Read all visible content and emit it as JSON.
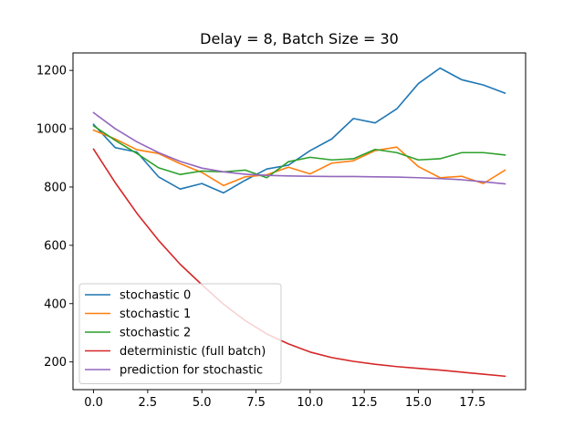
{
  "chart_data": {
    "type": "line",
    "title": "Delay = 8, Batch Size = 30",
    "xlabel": "",
    "ylabel": "",
    "xlim": [
      -0.95,
      19.95
    ],
    "ylim": [
      105,
      1260
    ],
    "x": [
      0,
      1,
      2,
      3,
      4,
      5,
      6,
      7,
      8,
      9,
      10,
      11,
      12,
      13,
      14,
      15,
      16,
      17,
      18,
      19
    ],
    "xticks": [
      0.0,
      2.5,
      5.0,
      7.5,
      10.0,
      12.5,
      15.0,
      17.5
    ],
    "xtick_labels": [
      "0.0",
      "2.5",
      "5.0",
      "7.5",
      "10.0",
      "12.5",
      "15.0",
      "17.5"
    ],
    "yticks": [
      200,
      400,
      600,
      800,
      1000,
      1200
    ],
    "ytick_labels": [
      "200",
      "400",
      "600",
      "800",
      "1000",
      "1200"
    ],
    "grid": false,
    "legend_position": "lower-left",
    "series": [
      {
        "name": "stochastic 0",
        "color": "#1f77b4",
        "values": [
          1015,
          935,
          920,
          835,
          793,
          812,
          780,
          823,
          862,
          875,
          925,
          965,
          1035,
          1020,
          1068,
          1155,
          1208,
          1168,
          1150,
          1122
        ]
      },
      {
        "name": "stochastic 1",
        "color": "#ff7f0e",
        "values": [
          995,
          965,
          928,
          915,
          880,
          850,
          805,
          835,
          842,
          868,
          845,
          882,
          890,
          925,
          937,
          870,
          832,
          837,
          812,
          858
        ]
      },
      {
        "name": "stochastic 2",
        "color": "#2ca02c",
        "values": [
          1010,
          960,
          915,
          866,
          843,
          855,
          852,
          858,
          832,
          887,
          902,
          893,
          897,
          929,
          918,
          893,
          897,
          918,
          918,
          910
        ]
      },
      {
        "name": "deterministic (full batch)",
        "color": "#d62728",
        "values": [
          930,
          815,
          710,
          617,
          535,
          465,
          398,
          342,
          296,
          262,
          234,
          215,
          202,
          192,
          184,
          178,
          172,
          165,
          158,
          151
        ]
      },
      {
        "name": "prediction for stochastic",
        "color": "#9467bd",
        "values": [
          1055,
          1000,
          955,
          918,
          888,
          865,
          852,
          844,
          840,
          838,
          837,
          836,
          836,
          835,
          834,
          832,
          829,
          825,
          818,
          811
        ]
      }
    ]
  }
}
